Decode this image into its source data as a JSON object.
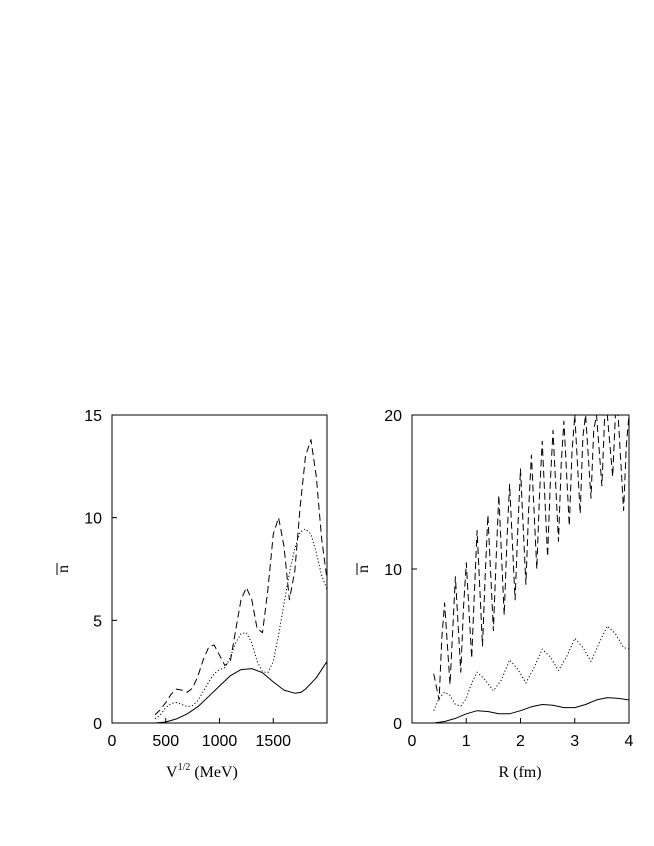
{
  "chart_data": [
    {
      "type": "line",
      "xlabel_main": "V",
      "xlabel_sup": "1/2",
      "xlabel_unit": " (MeV)",
      "ylabel": "n",
      "ylabel_overline": true,
      "xlim": [
        0,
        2000
      ],
      "ylim": [
        0,
        15
      ],
      "xticks": [
        0,
        500,
        1000,
        1500
      ],
      "xtick_labels": [
        "0",
        "500",
        "1000",
        "1500"
      ],
      "yticks": [
        0,
        5,
        10,
        15
      ],
      "ytick_labels": [
        "0",
        "5",
        "10",
        "15"
      ],
      "grid": false,
      "series": [
        {
          "style": "solid",
          "x": [
            400,
            500,
            600,
            700,
            800,
            900,
            1000,
            1100,
            1200,
            1300,
            1400,
            1500,
            1600,
            1700,
            1760,
            1800,
            1900,
            2000
          ],
          "y": [
            0.0,
            0.05,
            0.2,
            0.45,
            0.8,
            1.3,
            1.8,
            2.3,
            2.6,
            2.65,
            2.45,
            2.0,
            1.6,
            1.45,
            1.5,
            1.65,
            2.2,
            3.0
          ]
        },
        {
          "style": "dotted",
          "x": [
            400,
            450,
            500,
            550,
            600,
            650,
            700,
            750,
            800,
            850,
            900,
            950,
            1000,
            1050,
            1100,
            1150,
            1200,
            1250,
            1300,
            1350,
            1400,
            1450,
            1500,
            1550,
            1600,
            1650,
            1700,
            1750,
            1800,
            1850,
            1900,
            1950,
            2000
          ],
          "y": [
            0.2,
            0.4,
            0.75,
            0.95,
            1.0,
            0.9,
            0.8,
            0.85,
            1.1,
            1.55,
            2.0,
            2.4,
            2.6,
            2.7,
            3.2,
            3.9,
            4.35,
            4.4,
            3.9,
            3.0,
            2.5,
            2.45,
            3.0,
            4.3,
            5.8,
            7.3,
            8.5,
            9.3,
            9.45,
            9.2,
            8.3,
            7.2,
            6.5
          ]
        },
        {
          "style": "dashed",
          "x": [
            400,
            450,
            500,
            550,
            600,
            650,
            700,
            750,
            800,
            850,
            900,
            950,
            1000,
            1050,
            1100,
            1150,
            1200,
            1250,
            1300,
            1350,
            1400,
            1450,
            1500,
            1550,
            1600,
            1650,
            1700,
            1750,
            1800,
            1850,
            1900,
            1950,
            2000
          ],
          "y": [
            0.4,
            0.65,
            1.0,
            1.4,
            1.65,
            1.6,
            1.5,
            1.7,
            2.3,
            3.1,
            3.7,
            3.8,
            3.3,
            2.8,
            3.0,
            4.5,
            6.0,
            6.6,
            6.0,
            4.6,
            4.4,
            6.5,
            9.2,
            10.0,
            8.6,
            6.0,
            7.4,
            10.5,
            13.0,
            13.8,
            12.0,
            9.0,
            7.0
          ]
        }
      ]
    },
    {
      "type": "line",
      "xlabel": "R (fm)",
      "ylabel": "n",
      "ylabel_overline": true,
      "xlim": [
        0,
        4
      ],
      "ylim": [
        0,
        20
      ],
      "xticks": [
        0,
        1,
        2,
        3,
        4
      ],
      "xtick_labels": [
        "0",
        "1",
        "2",
        "3",
        "4"
      ],
      "yticks": [
        0,
        10,
        20
      ],
      "ytick_labels": [
        "0",
        "10",
        "20"
      ],
      "grid": false,
      "series": [
        {
          "style": "solid",
          "x": [
            0.4,
            0.6,
            0.8,
            1.0,
            1.2,
            1.4,
            1.6,
            1.8,
            2.0,
            2.2,
            2.4,
            2.6,
            2.8,
            3.0,
            3.2,
            3.4,
            3.6,
            3.8,
            4.0
          ],
          "y": [
            0.0,
            0.1,
            0.3,
            0.6,
            0.8,
            0.75,
            0.6,
            0.6,
            0.8,
            1.05,
            1.2,
            1.15,
            1.0,
            1.0,
            1.2,
            1.5,
            1.65,
            1.6,
            1.5
          ]
        },
        {
          "style": "dotted",
          "x": [
            0.4,
            0.5,
            0.6,
            0.7,
            0.8,
            0.9,
            1.0,
            1.1,
            1.2,
            1.35,
            1.5,
            1.65,
            1.8,
            1.95,
            2.1,
            2.25,
            2.4,
            2.55,
            2.7,
            2.85,
            3.0,
            3.15,
            3.3,
            3.45,
            3.6,
            3.75,
            3.9,
            4.0
          ],
          "y": [
            0.8,
            1.6,
            2.0,
            1.8,
            1.2,
            1.1,
            1.6,
            2.6,
            3.3,
            2.8,
            2.1,
            2.8,
            4.1,
            3.5,
            2.6,
            3.6,
            4.8,
            4.3,
            3.4,
            4.3,
            5.5,
            4.9,
            4.0,
            5.2,
            6.3,
            5.8,
            4.9,
            4.8
          ]
        },
        {
          "style": "dashed",
          "x": [
            0.4,
            0.5,
            0.55,
            0.6,
            0.7,
            0.75,
            0.8,
            0.9,
            0.95,
            1.0,
            1.1,
            1.15,
            1.2,
            1.3,
            1.35,
            1.4,
            1.5,
            1.55,
            1.6,
            1.7,
            1.75,
            1.8,
            1.9,
            1.95,
            2.0,
            2.1,
            2.15,
            2.2,
            2.3,
            2.35,
            2.4,
            2.5,
            2.55,
            2.6,
            2.7,
            2.75,
            2.8,
            2.9,
            2.95,
            3.0,
            3.1,
            3.15,
            3.2,
            3.3,
            3.35,
            3.4,
            3.5,
            3.55,
            3.6,
            3.7,
            3.75,
            3.8,
            3.9,
            3.95,
            4.0
          ],
          "y": [
            3.2,
            1.5,
            5.5,
            7.8,
            2.5,
            6.0,
            9.5,
            3.3,
            7.5,
            10.4,
            4.2,
            8.5,
            12.5,
            5.0,
            9.6,
            13.5,
            6.0,
            10.6,
            14.8,
            7.0,
            11.8,
            15.5,
            8.0,
            12.6,
            16.5,
            9.0,
            13.8,
            17.4,
            10.0,
            14.8,
            18.3,
            10.8,
            15.6,
            19.0,
            11.8,
            16.8,
            19.6,
            12.8,
            17.6,
            20.0,
            13.6,
            18.6,
            20.0,
            14.6,
            19.0,
            20.0,
            15.4,
            19.8,
            20.0,
            16.0,
            20.0,
            20.0,
            13.8,
            18.0,
            20.0
          ]
        }
      ]
    }
  ]
}
